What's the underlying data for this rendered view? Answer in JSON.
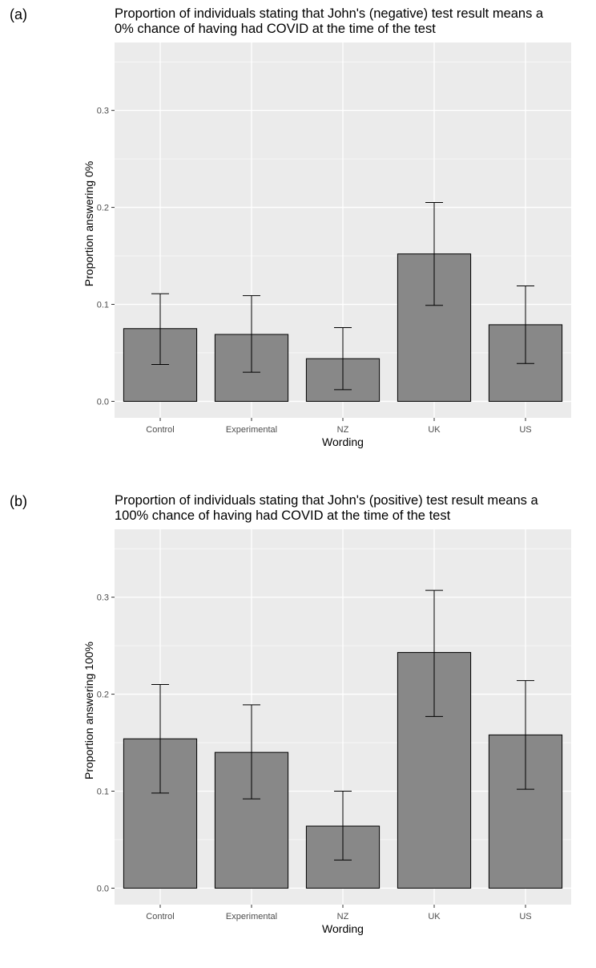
{
  "chart_data": [
    {
      "type": "bar",
      "panel_label": "(a)",
      "title_lines": [
        "Proportion of individuals stating that John's (negative) test result means a",
        "0% chance of having had COVID at the time of the test"
      ],
      "xlabel": "Wording",
      "ylabel": "Proportion answering 0%",
      "categories": [
        "Control",
        "Experimental",
        "NZ",
        "UK",
        "US"
      ],
      "values": [
        0.075,
        0.069,
        0.044,
        0.152,
        0.079
      ],
      "error_low": [
        0.038,
        0.03,
        0.012,
        0.099,
        0.039
      ],
      "error_high": [
        0.111,
        0.109,
        0.076,
        0.205,
        0.119
      ],
      "yticks": [
        0.0,
        0.1,
        0.2,
        0.3
      ],
      "ytick_labels": [
        "0.0",
        "0.1",
        "0.2",
        "0.3"
      ],
      "ylim": [
        -0.017,
        0.37
      ],
      "grid": true,
      "colors": {
        "bar": "#888888",
        "panel_bg": "#ebebeb",
        "grid": "#ffffff"
      }
    },
    {
      "type": "bar",
      "panel_label": "(b)",
      "title_lines": [
        "Proportion of individuals stating that John's (positive) test result means a",
        "100% chance of having had COVID at the time of the test"
      ],
      "xlabel": "Wording",
      "ylabel": "Proportion answering 100%",
      "categories": [
        "Control",
        "Experimental",
        "NZ",
        "UK",
        "US"
      ],
      "values": [
        0.154,
        0.14,
        0.064,
        0.243,
        0.158
      ],
      "error_low": [
        0.098,
        0.092,
        0.029,
        0.177,
        0.102
      ],
      "error_high": [
        0.21,
        0.189,
        0.1,
        0.307,
        0.214
      ],
      "yticks": [
        0.0,
        0.1,
        0.2,
        0.3
      ],
      "ytick_labels": [
        "0.0",
        "0.1",
        "0.2",
        "0.3"
      ],
      "ylim": [
        -0.017,
        0.37
      ],
      "grid": true,
      "colors": {
        "bar": "#888888",
        "panel_bg": "#ebebeb",
        "grid": "#ffffff"
      }
    }
  ]
}
